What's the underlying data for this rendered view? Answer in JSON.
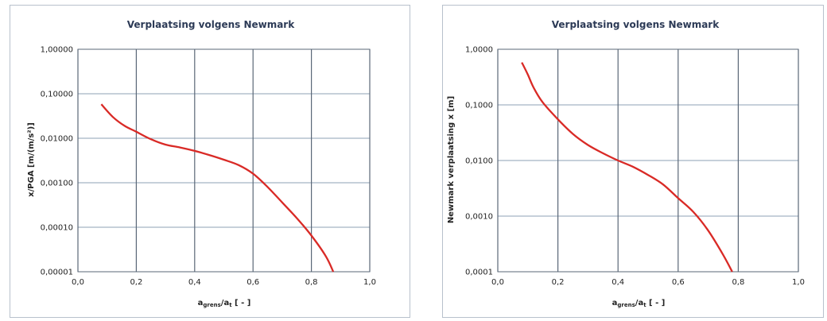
{
  "chart_data": [
    {
      "type": "line",
      "title": "Verplaatsing volgens Newmark",
      "ylabel": "x/PGA [m/(m/s²)]",
      "xlabel_main": "a",
      "xlabel_sub1": "grens",
      "xlabel_mid": "/a",
      "xlabel_sub2": "t",
      "xlabel_tail": " [ - ]",
      "x_ticks": [
        "0,0",
        "0,2",
        "0,4",
        "0,6",
        "0,8",
        "1,0"
      ],
      "y_ticks": [
        "0,00001",
        "0,00010",
        "0,00100",
        "0,01000",
        "0,10000",
        "1,00000"
      ],
      "y_scale": "log",
      "xlim": [
        0,
        1
      ],
      "ylim": [
        1e-05,
        1
      ],
      "line_color": "#d92a26",
      "grid": true,
      "series": [
        {
          "x": [
            0.08,
            0.12,
            0.16,
            0.2,
            0.25,
            0.3,
            0.35,
            0.4,
            0.45,
            0.5,
            0.55,
            0.6,
            0.65,
            0.7,
            0.75,
            0.8,
            0.85,
            0.875
          ],
          "y": [
            0.058,
            0.03,
            0.019,
            0.014,
            0.0095,
            0.0072,
            0.0062,
            0.0052,
            0.0042,
            0.0033,
            0.0025,
            0.0016,
            0.0008,
            0.00036,
            0.00016,
            6.5e-05,
            2.2e-05,
            1e-05
          ]
        }
      ]
    },
    {
      "type": "line",
      "title": "Verplaatsing volgens Newmark",
      "ylabel": "Newmark verplaatsing x [m]",
      "xlabel_main": "a",
      "xlabel_sub1": "grens",
      "xlabel_mid": "/a",
      "xlabel_sub2": "t",
      "xlabel_tail": " [ - ]",
      "x_ticks": [
        "0,0",
        "0,2",
        "0,4",
        "0,6",
        "0,8",
        "1,0"
      ],
      "y_ticks": [
        "0,0001",
        "0,0010",
        "0,0100",
        "0,1000",
        "1,0000"
      ],
      "y_scale": "log",
      "xlim": [
        0,
        1
      ],
      "ylim": [
        0.0001,
        1
      ],
      "line_color": "#d92a26",
      "grid": true,
      "series": [
        {
          "x": [
            0.08,
            0.1,
            0.12,
            0.15,
            0.2,
            0.25,
            0.3,
            0.35,
            0.4,
            0.45,
            0.5,
            0.55,
            0.6,
            0.65,
            0.7,
            0.75,
            0.78
          ],
          "y": [
            0.58,
            0.35,
            0.2,
            0.11,
            0.055,
            0.03,
            0.019,
            0.0135,
            0.01,
            0.0077,
            0.0055,
            0.0037,
            0.0021,
            0.0012,
            0.00055,
            0.0002,
            0.0001
          ]
        }
      ]
    }
  ]
}
